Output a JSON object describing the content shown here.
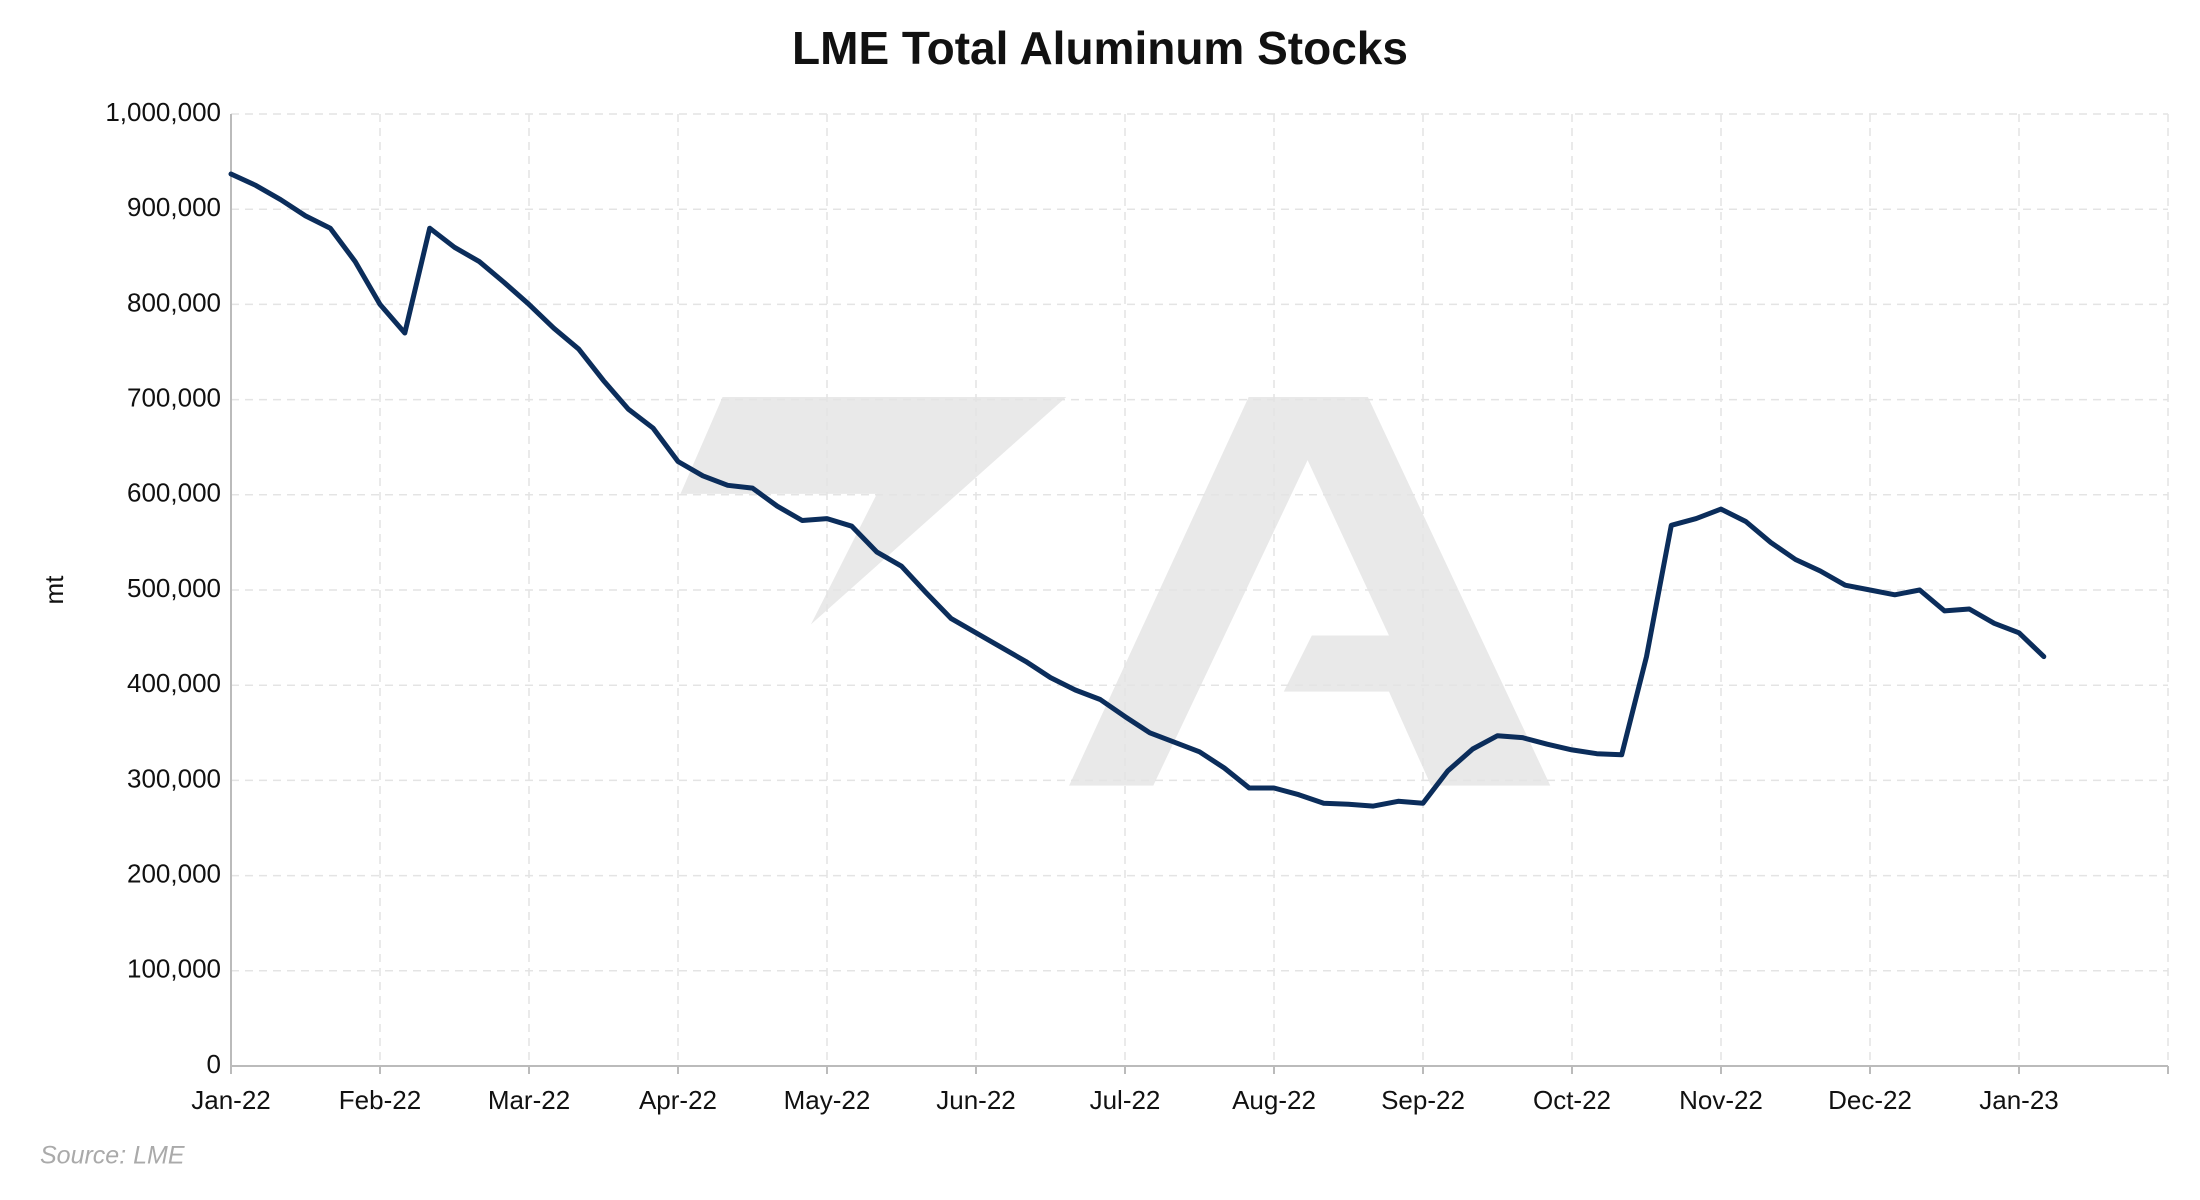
{
  "chart_data": {
    "type": "line",
    "title": "LME Total Aluminum Stocks",
    "y_label": "mt",
    "source": "Source: LME",
    "categories": [
      "Jan-22",
      null,
      null,
      null,
      null,
      null,
      "Feb-22",
      null,
      null,
      null,
      null,
      null,
      "Mar-22",
      null,
      null,
      null,
      null,
      null,
      "Apr-22",
      null,
      null,
      null,
      null,
      null,
      "May-22",
      null,
      null,
      null,
      null,
      null,
      "Jun-22",
      null,
      null,
      null,
      null,
      null,
      "Jul-22",
      null,
      null,
      null,
      null,
      null,
      "Aug-22",
      null,
      null,
      null,
      null,
      null,
      "Sep-22",
      null,
      null,
      null,
      null,
      null,
      "Oct-22",
      null,
      null,
      null,
      null,
      null,
      "Nov-22",
      null,
      null,
      null,
      null,
      null,
      "Dec-22",
      null,
      null,
      null,
      null,
      null,
      "Jan-23",
      null,
      null,
      null,
      null,
      null,
      null
    ],
    "series": [
      {
        "name": "LME Total Aluminum Stocks",
        "color": "#0b2d5b",
        "values": [
          937000,
          925000,
          910000,
          893000,
          880000,
          845000,
          800000,
          770000,
          880000,
          860000,
          845000,
          823000,
          800000,
          775000,
          753000,
          720000,
          690000,
          670000,
          635000,
          620000,
          610000,
          607000,
          588000,
          573000,
          575000,
          567000,
          540000,
          525000,
          497000,
          470000,
          455000,
          440000,
          425000,
          408000,
          395000,
          385000,
          367000,
          350000,
          340000,
          330000,
          313000,
          292000,
          292000,
          285000,
          276000,
          275000,
          273000,
          278000,
          276000,
          310000,
          333000,
          347000,
          345000,
          338000,
          332000,
          328000,
          327000,
          430000,
          568000,
          575000,
          585000,
          572000,
          550000,
          532000,
          520000,
          505000,
          500000,
          495000,
          500000,
          478000,
          480000,
          465000,
          455000,
          430000,
          null,
          null,
          null,
          null,
          null
        ]
      }
    ],
    "ylim": [
      0,
      1000000
    ],
    "yticks": [
      0,
      {
        "value": 100000,
        "label": "100,000"
      },
      {
        "value": 200000,
        "label": "200,000"
      },
      {
        "value": 300000,
        "label": "300,000"
      },
      {
        "value": 400000,
        "label": "400,000"
      },
      {
        "value": 500000,
        "label": "500,000"
      },
      {
        "value": 600000,
        "label": "600,000"
      },
      {
        "value": 700000,
        "label": "700,000"
      },
      {
        "value": 800000,
        "label": "800,000"
      },
      {
        "value": 900000,
        "label": "900,000"
      },
      {
        "value": 1000000,
        "label": "1,000,000"
      }
    ],
    "grid": true
  }
}
